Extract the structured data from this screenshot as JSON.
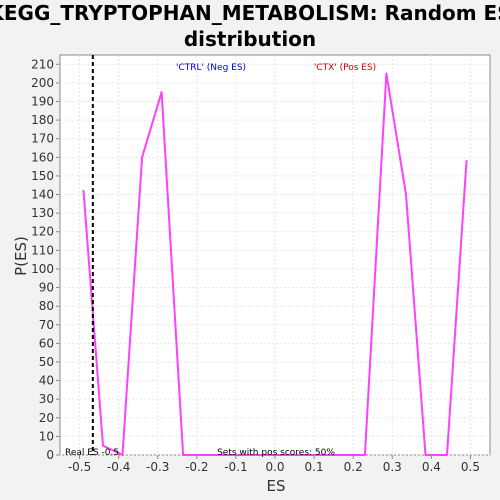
{
  "chart_data": {
    "type": "line",
    "title_line1": "KEGG_TRYPTOPHAN_METABOLISM: Random ES",
    "title_line2": "distribution",
    "xlabel": "ES",
    "ylabel": "P(ES)",
    "xlim": [
      -0.55,
      0.55
    ],
    "ylim": [
      0,
      215
    ],
    "x_ticks": [
      -0.5,
      -0.4,
      -0.3,
      -0.2,
      -0.1,
      0.0,
      0.1,
      0.2,
      0.3,
      0.4,
      0.5
    ],
    "x_tick_labels": [
      "-0.5",
      "-0.4",
      "-0.3",
      "-0.2",
      "-0.1",
      "0.0",
      "0.1",
      "0.2",
      "0.3",
      "0.4",
      "0.5"
    ],
    "y_ticks": [
      0,
      10,
      20,
      30,
      40,
      50,
      60,
      70,
      80,
      90,
      100,
      110,
      120,
      130,
      140,
      150,
      160,
      170,
      180,
      190,
      200,
      210
    ],
    "y_tick_labels": [
      "0",
      "10",
      "20",
      "30",
      "40",
      "50",
      "60",
      "70",
      "80",
      "90",
      "100",
      "110",
      "120",
      "130",
      "140",
      "150",
      "160",
      "170",
      "180",
      "190",
      "200",
      "210"
    ],
    "grid": true,
    "series": [
      {
        "color": "#ff40ff",
        "x": [
          -0.49,
          -0.44,
          -0.39,
          -0.34,
          -0.29,
          -0.235,
          -0.18,
          -0.13,
          -0.08,
          -0.03,
          0.02,
          0.07,
          0.12,
          0.17,
          0.23,
          0.285,
          0.335,
          0.385,
          0.44,
          0.49
        ],
        "y": [
          142,
          5,
          0,
          160,
          195,
          0,
          0,
          0,
          0,
          0,
          0,
          0,
          0,
          0,
          0,
          205,
          140,
          0,
          0,
          158
        ]
      }
    ],
    "real_es": -0.466,
    "annotations": {
      "neg_label": "'CTRL' (Neg ES)",
      "pos_label": "'CTX' (Pos ES)",
      "neg_color": "#0000cc",
      "pos_color": "#cc0000",
      "real_es_label": "Real ES -0.5",
      "sets_label": "Sets with pos scores: 50%"
    }
  }
}
